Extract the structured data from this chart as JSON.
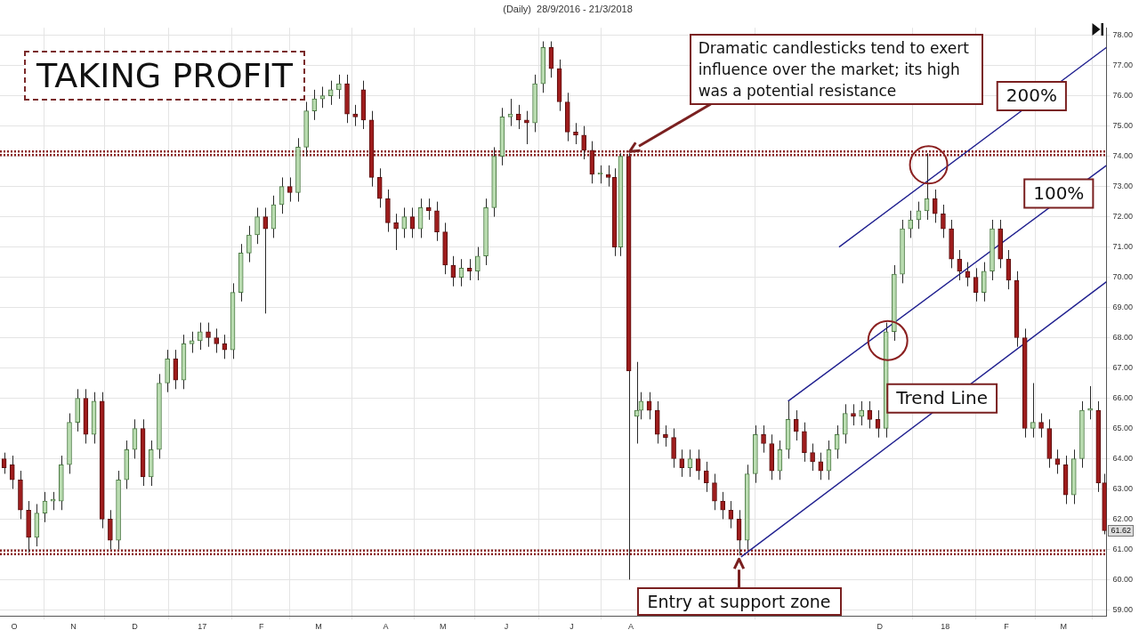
{
  "chart_data": {
    "type": "candlestick",
    "title": "(Daily)  28/9/2016 - 21/3/2018",
    "annotations": [
      "TAKING PROFIT",
      "Dramatic candlesticks tend to exert influence over the market; its high was a potential resistance",
      {
        "text": "Entry at support zone",
        "x": "2017-09-23",
        "y": 60.8
      },
      "61.62"
    ],
    "xlim": [
      "2016-09-26",
      "2018-03-22"
    ],
    "xticks": [
      {
        "value": "2016-10-03",
        "label": "O"
      },
      {
        "value": "2016-11-01",
        "label": "N"
      },
      {
        "value": "2016-12-01",
        "label": "D"
      },
      {
        "value": "2017-01-03",
        "label": "17"
      },
      {
        "value": "2017-02-01",
        "label": "F"
      },
      {
        "value": "2017-03-01",
        "label": "M"
      },
      {
        "value": "2017-04-03",
        "label": "A"
      },
      {
        "value": "2017-05-01",
        "label": "M"
      },
      {
        "value": "2017-06-01",
        "label": "J"
      },
      {
        "value": "2017-07-03",
        "label": "J"
      },
      {
        "value": "2017-08-01",
        "label": "A"
      },
      {
        "value": "2017-12-01",
        "label": "D"
      },
      {
        "value": "2018-01-02",
        "label": "18"
      },
      {
        "value": "2018-02-01",
        "label": "F"
      },
      {
        "value": "2018-03-01",
        "label": "M"
      }
    ],
    "ylim": [
      58.8,
      78.25
    ],
    "yticks": [
      {
        "value": 59,
        "label": "59.00"
      },
      {
        "value": 60,
        "label": "60.00"
      },
      {
        "value": 61,
        "label": "61.00"
      },
      {
        "value": 62,
        "label": "62.00"
      },
      {
        "value": 63,
        "label": "63.00"
      },
      {
        "value": 64,
        "label": "64.00"
      },
      {
        "value": 65,
        "label": "65.00"
      },
      {
        "value": 66,
        "label": "66.00"
      },
      {
        "value": 67,
        "label": "67.00"
      },
      {
        "value": 68,
        "label": "68.00"
      },
      {
        "value": 69,
        "label": "69.00"
      },
      {
        "value": 70,
        "label": "70.00"
      },
      {
        "value": 71,
        "label": "71.00"
      },
      {
        "value": 72,
        "label": "72.00"
      },
      {
        "value": 73,
        "label": "73.00"
      },
      {
        "value": 74,
        "label": "74.00"
      },
      {
        "value": 75,
        "label": "75.00"
      },
      {
        "value": 76,
        "label": "76.00"
      },
      {
        "value": 77,
        "label": "77.00"
      },
      {
        "value": 78,
        "label": "78.00"
      }
    ],
    "grid": true,
    "marker": "none",
    "ref_lines": [
      {
        "axis": "y",
        "value": 74.1,
        "color": "#8b2323",
        "line_style": "dotted"
      },
      {
        "axis": "y",
        "value": 60.9,
        "color": "#8b2323",
        "line_style": "dotted"
      }
    ],
    "series": [
      {
        "x": [
          "2016-09-28",
          "2016-10-02",
          "2016-10-06",
          "2016-10-10",
          "2016-10-14",
          "2016-10-18",
          "2016-10-22",
          "2016-10-26",
          "2016-10-30",
          "2016-11-03",
          "2016-11-07",
          "2016-11-11",
          "2016-11-15",
          "2016-11-19",
          "2016-11-23",
          "2016-11-27",
          "2016-12-01",
          "2016-12-05",
          "2016-12-09",
          "2016-12-13",
          "2016-12-17",
          "2016-12-21",
          "2016-12-25",
          "2016-12-29",
          "2017-01-02",
          "2017-01-06",
          "2017-01-10",
          "2017-01-14",
          "2017-01-18",
          "2017-01-22",
          "2017-01-26",
          "2017-01-30",
          "2017-02-03",
          "2017-02-07",
          "2017-02-11",
          "2017-02-15",
          "2017-02-19",
          "2017-02-23",
          "2017-02-27",
          "2017-03-03",
          "2017-03-07",
          "2017-03-11",
          "2017-03-15",
          "2017-03-19",
          "2017-03-23",
          "2017-03-27",
          "2017-03-31",
          "2017-04-04",
          "2017-04-08",
          "2017-04-12",
          "2017-04-16",
          "2017-04-20",
          "2017-04-24",
          "2017-04-28",
          "2017-05-02",
          "2017-05-06",
          "2017-05-10",
          "2017-05-14",
          "2017-05-18",
          "2017-05-22",
          "2017-05-26",
          "2017-05-30",
          "2017-06-03",
          "2017-06-07",
          "2017-06-11",
          "2017-06-15",
          "2017-06-19",
          "2017-06-23",
          "2017-06-27",
          "2017-07-01",
          "2017-07-05",
          "2017-07-09",
          "2017-07-13",
          "2017-07-17",
          "2017-07-21",
          "2017-07-24",
          "2017-07-27",
          "2017-07-31",
          "2017-08-04",
          "2017-08-06",
          "2017-08-10",
          "2017-08-14",
          "2017-08-18",
          "2017-08-22",
          "2017-08-26",
          "2017-08-30",
          "2017-09-03",
          "2017-09-07",
          "2017-09-11",
          "2017-09-15",
          "2017-09-19",
          "2017-09-23",
          "2017-09-27",
          "2017-10-01",
          "2017-10-05",
          "2017-10-09",
          "2017-10-13",
          "2017-10-17",
          "2017-10-21",
          "2017-10-25",
          "2017-10-29",
          "2017-11-02",
          "2017-11-06",
          "2017-11-10",
          "2017-11-14",
          "2017-11-18",
          "2017-11-22",
          "2017-11-26",
          "2017-11-30",
          "2017-12-04",
          "2017-12-08",
          "2017-12-12",
          "2017-12-16",
          "2017-12-20",
          "2017-12-24",
          "2017-12-28",
          "2018-01-01",
          "2018-01-05",
          "2018-01-09",
          "2018-01-13",
          "2018-01-17",
          "2018-01-21",
          "2018-01-25",
          "2018-01-29",
          "2018-02-02",
          "2018-02-06",
          "2018-02-10",
          "2018-02-14",
          "2018-02-18",
          "2018-02-22",
          "2018-02-26",
          "2018-03-02",
          "2018-03-06",
          "2018-03-10",
          "2018-03-14",
          "2018-03-18",
          "2018-03-21"
        ],
        "ohlc": [
          [
            64.0,
            64.2,
            63.5,
            63.7
          ],
          [
            63.8,
            64.1,
            63.0,
            63.3
          ],
          [
            63.3,
            63.6,
            62.0,
            62.3
          ],
          [
            62.3,
            62.6,
            60.9,
            61.4
          ],
          [
            61.4,
            62.5,
            61.1,
            62.2
          ],
          [
            62.2,
            62.9,
            61.9,
            62.6
          ],
          [
            62.6,
            62.9,
            62.3,
            62.6
          ],
          [
            62.6,
            64.1,
            62.3,
            63.8
          ],
          [
            63.8,
            65.5,
            63.5,
            65.2
          ],
          [
            65.2,
            66.3,
            64.9,
            66.0
          ],
          [
            66.0,
            66.3,
            64.5,
            64.8
          ],
          [
            64.8,
            66.2,
            64.5,
            65.9
          ],
          [
            65.9,
            66.2,
            61.7,
            62.0
          ],
          [
            62.0,
            62.3,
            61.0,
            61.3
          ],
          [
            61.3,
            63.6,
            61.0,
            63.3
          ],
          [
            63.3,
            64.6,
            63.0,
            64.3
          ],
          [
            64.3,
            65.3,
            64.0,
            65.0
          ],
          [
            65.0,
            65.3,
            63.1,
            63.4
          ],
          [
            63.4,
            64.6,
            63.1,
            64.3
          ],
          [
            64.3,
            66.8,
            64.0,
            66.5
          ],
          [
            66.5,
            67.6,
            66.2,
            67.3
          ],
          [
            67.3,
            67.6,
            66.3,
            66.6
          ],
          [
            66.6,
            68.1,
            66.3,
            67.8
          ],
          [
            67.8,
            68.2,
            67.5,
            67.9
          ],
          [
            67.9,
            68.5,
            67.6,
            68.2
          ],
          [
            68.2,
            68.5,
            67.7,
            68.0
          ],
          [
            68.0,
            68.3,
            67.5,
            67.8
          ],
          [
            67.8,
            68.1,
            67.3,
            67.6
          ],
          [
            67.6,
            69.8,
            67.3,
            69.5
          ],
          [
            69.5,
            71.1,
            69.2,
            70.8
          ],
          [
            70.8,
            71.7,
            70.5,
            71.4
          ],
          [
            71.4,
            72.3,
            71.1,
            72.0
          ],
          [
            72.0,
            72.3,
            68.8,
            71.6
          ],
          [
            71.6,
            72.7,
            71.3,
            72.4
          ],
          [
            72.4,
            73.3,
            72.1,
            73.0
          ],
          [
            73.0,
            73.3,
            72.5,
            72.8
          ],
          [
            72.8,
            74.6,
            72.5,
            74.3
          ],
          [
            74.3,
            75.8,
            74.0,
            75.5
          ],
          [
            75.5,
            76.2,
            75.2,
            75.9
          ],
          [
            75.9,
            76.3,
            75.6,
            76.0
          ],
          [
            76.0,
            76.5,
            75.7,
            76.2
          ],
          [
            76.2,
            76.7,
            75.9,
            76.4
          ],
          [
            76.4,
            76.7,
            75.1,
            75.4
          ],
          [
            75.4,
            75.7,
            75.0,
            75.3
          ],
          [
            76.2,
            76.5,
            74.9,
            75.2
          ],
          [
            75.2,
            75.5,
            73.0,
            73.3
          ],
          [
            73.3,
            73.6,
            72.3,
            72.6
          ],
          [
            72.6,
            72.9,
            71.5,
            71.8
          ],
          [
            71.8,
            72.1,
            70.9,
            71.6
          ],
          [
            71.6,
            72.3,
            71.3,
            72.0
          ],
          [
            72.0,
            72.3,
            71.3,
            71.6
          ],
          [
            71.6,
            72.6,
            71.3,
            72.3
          ],
          [
            72.3,
            72.6,
            71.9,
            72.2
          ],
          [
            72.2,
            72.5,
            71.2,
            71.5
          ],
          [
            71.5,
            71.8,
            70.1,
            70.4
          ],
          [
            70.4,
            70.7,
            69.7,
            70.0
          ],
          [
            70.0,
            70.6,
            69.7,
            70.3
          ],
          [
            70.3,
            70.6,
            69.9,
            70.2
          ],
          [
            70.2,
            71.0,
            69.9,
            70.7
          ],
          [
            70.7,
            72.6,
            70.4,
            72.3
          ],
          [
            72.3,
            74.3,
            72.0,
            74.0
          ],
          [
            74.0,
            75.6,
            73.7,
            75.3
          ],
          [
            75.3,
            75.9,
            75.0,
            75.4
          ],
          [
            75.4,
            75.7,
            74.9,
            75.2
          ],
          [
            75.2,
            75.5,
            74.4,
            75.1
          ],
          [
            75.1,
            76.7,
            74.8,
            76.4
          ],
          [
            76.4,
            77.8,
            76.1,
            77.6
          ],
          [
            77.6,
            77.8,
            76.6,
            76.9
          ],
          [
            76.9,
            77.2,
            75.5,
            75.8
          ],
          [
            75.8,
            76.1,
            74.5,
            74.8
          ],
          [
            74.8,
            75.1,
            74.4,
            74.7
          ],
          [
            74.7,
            75.0,
            73.9,
            74.2
          ],
          [
            74.2,
            74.5,
            73.1,
            73.4
          ],
          [
            73.4,
            73.7,
            73.1,
            73.4
          ],
          [
            73.4,
            73.7,
            73.0,
            73.3
          ],
          [
            73.3,
            73.6,
            70.7,
            71.0
          ],
          [
            71.0,
            74.1,
            70.7,
            74.0
          ],
          [
            74.0,
            74.1,
            60.0,
            66.9
          ],
          [
            65.4,
            67.2,
            64.5,
            65.6
          ],
          [
            65.6,
            66.2,
            65.3,
            65.9
          ],
          [
            65.9,
            66.2,
            65.3,
            65.6
          ],
          [
            65.6,
            65.9,
            64.5,
            64.8
          ],
          [
            64.8,
            65.1,
            64.4,
            64.7
          ],
          [
            64.7,
            65.0,
            63.7,
            64.0
          ],
          [
            64.0,
            64.3,
            63.4,
            63.7
          ],
          [
            63.7,
            64.3,
            63.4,
            64.0
          ],
          [
            64.0,
            64.3,
            63.3,
            63.6
          ],
          [
            63.6,
            63.9,
            62.9,
            63.2
          ],
          [
            63.2,
            63.5,
            62.3,
            62.6
          ],
          [
            62.6,
            62.9,
            62.0,
            62.3
          ],
          [
            62.3,
            62.6,
            61.7,
            62.0
          ],
          [
            62.0,
            62.3,
            60.8,
            61.3
          ],
          [
            61.3,
            63.8,
            61.0,
            63.5
          ],
          [
            63.5,
            65.1,
            63.2,
            64.8
          ],
          [
            64.8,
            65.1,
            64.2,
            64.5
          ],
          [
            64.5,
            64.8,
            63.3,
            63.6
          ],
          [
            63.6,
            64.6,
            63.3,
            64.3
          ],
          [
            64.3,
            65.9,
            64.0,
            65.3
          ],
          [
            65.3,
            65.6,
            64.6,
            64.9
          ],
          [
            64.9,
            65.2,
            63.9,
            64.2
          ],
          [
            64.2,
            64.5,
            63.6,
            63.9
          ],
          [
            63.9,
            64.2,
            63.3,
            63.6
          ],
          [
            63.6,
            64.6,
            63.3,
            64.3
          ],
          [
            64.3,
            65.1,
            64.0,
            64.8
          ],
          [
            64.8,
            65.8,
            64.5,
            65.5
          ],
          [
            65.5,
            65.8,
            65.1,
            65.4
          ],
          [
            65.4,
            65.9,
            65.1,
            65.6
          ],
          [
            65.6,
            65.9,
            65.0,
            65.3
          ],
          [
            65.3,
            65.6,
            64.7,
            65.0
          ],
          [
            65.0,
            68.5,
            64.7,
            68.2
          ],
          [
            68.2,
            70.4,
            67.9,
            70.1
          ],
          [
            70.1,
            71.9,
            69.8,
            71.6
          ],
          [
            71.6,
            72.2,
            71.3,
            71.9
          ],
          [
            71.9,
            72.5,
            71.6,
            72.2
          ],
          [
            72.2,
            74.1,
            71.9,
            72.6
          ],
          [
            72.6,
            72.9,
            71.8,
            72.1
          ],
          [
            72.1,
            72.4,
            71.3,
            71.6
          ],
          [
            71.6,
            71.9,
            70.3,
            70.6
          ],
          [
            70.6,
            70.9,
            69.9,
            70.2
          ],
          [
            70.2,
            70.5,
            69.7,
            70.0
          ],
          [
            70.0,
            70.3,
            69.2,
            69.5
          ],
          [
            69.5,
            70.5,
            69.2,
            70.2
          ],
          [
            70.2,
            71.9,
            69.9,
            71.6
          ],
          [
            71.6,
            71.9,
            70.3,
            70.6
          ],
          [
            70.6,
            70.9,
            69.6,
            69.9
          ],
          [
            69.9,
            70.2,
            67.7,
            68.0
          ],
          [
            68.0,
            68.3,
            64.7,
            65.0
          ],
          [
            65.0,
            66.5,
            64.7,
            65.2
          ],
          [
            65.2,
            65.5,
            64.7,
            65.0
          ],
          [
            65.0,
            65.3,
            63.7,
            64.0
          ],
          [
            64.0,
            64.3,
            63.5,
            63.8
          ],
          [
            63.8,
            64.1,
            62.5,
            62.8
          ],
          [
            62.8,
            64.3,
            62.5,
            64.0
          ],
          [
            64.0,
            65.9,
            63.7,
            65.6
          ],
          [
            65.6,
            66.4,
            65.3,
            65.6
          ],
          [
            65.6,
            65.9,
            62.9,
            63.2
          ],
          [
            63.2,
            63.5,
            61.5,
            61.62
          ]
        ]
      },
      {
        "type": "line",
        "name": "Trend Line",
        "color": "#1f1f8f",
        "x": [
          "2017-09-24",
          "2018-03-22"
        ],
        "values": [
          60.75,
          69.85
        ]
      },
      {
        "type": "line",
        "name": "100%",
        "color": "#1f1f8f",
        "x": [
          "2017-10-17",
          "2018-03-22"
        ],
        "values": [
          65.9,
          73.7
        ]
      },
      {
        "type": "line",
        "name": "200%",
        "color": "#1f1f8f",
        "x": [
          "2017-11-11",
          "2018-03-22"
        ],
        "values": [
          71.0,
          77.6
        ]
      }
    ]
  }
}
